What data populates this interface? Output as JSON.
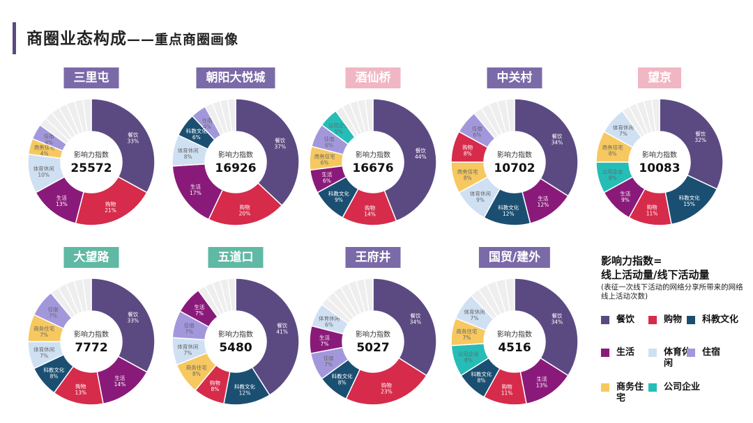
{
  "title": {
    "main": "商圈业态构成",
    "sub": "——重点商圈画像"
  },
  "colors": {
    "dining": "#5b4a82",
    "shopping": "#d62b4a",
    "scitech": "#1b4f72",
    "living": "#8a1a7a",
    "sports": "#cfe0f3",
    "hotel": "#a397dc",
    "business": "#f6c85f",
    "company": "#26bdb6",
    "other": "#eeeeee",
    "badge_purple": "#7b6aa8",
    "badge_pink": "#f0b6c4",
    "badge_teal": "#5fb9a4"
  },
  "center_label": "影响力指数",
  "formula": {
    "line1": "影响力指数=",
    "line2": "线上活动量/线下活动量",
    "line3": "(表征一次线下活动的网络分享所带来的网络线上活动次数)"
  },
  "legend": [
    {
      "key": "dining",
      "label": "餐饮"
    },
    {
      "key": "shopping",
      "label": "购物"
    },
    {
      "key": "scitech",
      "label": "科教文化"
    },
    {
      "key": "living",
      "label": "生活"
    },
    {
      "key": "sports",
      "label": "体育休闲"
    },
    {
      "key": "hotel",
      "label": "住宿"
    },
    {
      "key": "business",
      "label": "商务住宅"
    },
    {
      "key": "company",
      "label": "公司企业"
    }
  ],
  "chart_data": [
    {
      "type": "pie",
      "title": "三里屯",
      "badge": "purple",
      "index": "25572",
      "slices": [
        {
          "key": "dining",
          "name": "餐饮",
          "pct": 33,
          "label": "33%"
        },
        {
          "key": "shopping",
          "name": "购物",
          "pct": 21,
          "label": "21%"
        },
        {
          "key": "living",
          "name": "生活",
          "pct": 13,
          "label": "13%"
        },
        {
          "key": "sports",
          "name": "体育休闲",
          "pct": 10,
          "label": "10%"
        },
        {
          "key": "business",
          "name": "商务住宅",
          "pct": 4,
          "label": "4%"
        },
        {
          "key": "hotel",
          "name": "住宿",
          "pct": 4,
          "label": "4%"
        },
        {
          "key": "other",
          "name": "",
          "pct": 15,
          "label": ""
        }
      ]
    },
    {
      "type": "pie",
      "title": "朝阳大悦城",
      "badge": "purple",
      "index": "16926",
      "slices": [
        {
          "key": "dining",
          "name": "餐饮",
          "pct": 37,
          "label": "37%"
        },
        {
          "key": "shopping",
          "name": "购物",
          "pct": 20,
          "label": "20%"
        },
        {
          "key": "living",
          "name": "生活",
          "pct": 17,
          "label": "17%"
        },
        {
          "key": "sports",
          "name": "体育休闲",
          "pct": 8,
          "label": "8%"
        },
        {
          "key": "scitech",
          "name": "科教文化",
          "pct": 6,
          "label": "6%"
        },
        {
          "key": "hotel",
          "name": "住宿",
          "pct": 4,
          "label": "4%"
        },
        {
          "key": "other",
          "name": "",
          "pct": 8,
          "label": ""
        }
      ]
    },
    {
      "type": "pie",
      "title": "酒仙桥",
      "badge": "pink",
      "index": "16676",
      "slices": [
        {
          "key": "dining",
          "name": "餐饮",
          "pct": 44,
          "label": "44%"
        },
        {
          "key": "shopping",
          "name": "购物",
          "pct": 14,
          "label": "14%"
        },
        {
          "key": "scitech",
          "name": "科教文化",
          "pct": 9,
          "label": "9%"
        },
        {
          "key": "living",
          "name": "生活",
          "pct": 6,
          "label": "6%"
        },
        {
          "key": "business",
          "name": "商务住宅",
          "pct": 6,
          "label": "6%"
        },
        {
          "key": "hotel",
          "name": "住宿",
          "pct": 6,
          "label": "6%"
        },
        {
          "key": "company",
          "name": "公司企业",
          "pct": 5,
          "label": "5%"
        },
        {
          "key": "other",
          "name": "",
          "pct": 10,
          "label": ""
        }
      ]
    },
    {
      "type": "pie",
      "title": "中关村",
      "badge": "purple",
      "index": "10702",
      "slices": [
        {
          "key": "dining",
          "name": "餐饮",
          "pct": 34,
          "label": "34%"
        },
        {
          "key": "living",
          "name": "生活",
          "pct": 12,
          "label": "12%"
        },
        {
          "key": "scitech",
          "name": "科教文化",
          "pct": 12,
          "label": "12%"
        },
        {
          "key": "sports",
          "name": "体育休闲",
          "pct": 9,
          "label": "9%"
        },
        {
          "key": "business",
          "name": "商务住宅",
          "pct": 8,
          "label": "8%"
        },
        {
          "key": "shopping",
          "name": "购物",
          "pct": 8,
          "label": "8%"
        },
        {
          "key": "hotel",
          "name": "住宿",
          "pct": 6,
          "label": "6%"
        },
        {
          "key": "other",
          "name": "",
          "pct": 11,
          "label": ""
        }
      ]
    },
    {
      "type": "pie",
      "title": "望京",
      "badge": "pink",
      "index": "10083",
      "slices": [
        {
          "key": "dining",
          "name": "餐饮",
          "pct": 32,
          "label": "32%"
        },
        {
          "key": "scitech",
          "name": "科教文化",
          "pct": 15,
          "label": "15%"
        },
        {
          "key": "shopping",
          "name": "购物",
          "pct": 11,
          "label": "11%"
        },
        {
          "key": "living",
          "name": "生活",
          "pct": 9,
          "label": "9%"
        },
        {
          "key": "company",
          "name": "公司企业",
          "pct": 8,
          "label": "8%"
        },
        {
          "key": "business",
          "name": "商务住宅",
          "pct": 8,
          "label": "8%"
        },
        {
          "key": "sports",
          "name": "体育休闲",
          "pct": 7,
          "label": "7%"
        },
        {
          "key": "other",
          "name": "",
          "pct": 10,
          "label": ""
        }
      ]
    },
    {
      "type": "pie",
      "title": "大望路",
      "badge": "teal",
      "index": "7772",
      "slices": [
        {
          "key": "dining",
          "name": "餐饮",
          "pct": 33,
          "label": "33%"
        },
        {
          "key": "living",
          "name": "生活",
          "pct": 14,
          "label": "14%"
        },
        {
          "key": "shopping",
          "name": "购物",
          "pct": 13,
          "label": "13%"
        },
        {
          "key": "scitech",
          "name": "科教文化",
          "pct": 8,
          "label": "8%"
        },
        {
          "key": "sports",
          "name": "体育休闲",
          "pct": 7,
          "label": "7%"
        },
        {
          "key": "business",
          "name": "商务住宅",
          "pct": 7,
          "label": "7%"
        },
        {
          "key": "hotel",
          "name": "住宿",
          "pct": 7,
          "label": "7%"
        },
        {
          "key": "other",
          "name": "",
          "pct": 11,
          "label": ""
        }
      ]
    },
    {
      "type": "pie",
      "title": "五道口",
      "badge": "teal",
      "index": "5480",
      "slices": [
        {
          "key": "dining",
          "name": "餐饮",
          "pct": 41,
          "label": "41%"
        },
        {
          "key": "scitech",
          "name": "科教文化",
          "pct": 12,
          "label": "12%"
        },
        {
          "key": "shopping",
          "name": "购物",
          "pct": 8,
          "label": "8%"
        },
        {
          "key": "business",
          "name": "商务住宅",
          "pct": 8,
          "label": "8%"
        },
        {
          "key": "sports",
          "name": "体育休闲",
          "pct": 7,
          "label": "7%"
        },
        {
          "key": "hotel",
          "name": "住宿",
          "pct": 7,
          "label": "7%"
        },
        {
          "key": "living",
          "name": "生活",
          "pct": 7,
          "label": "7%"
        },
        {
          "key": "other",
          "name": "",
          "pct": 10,
          "label": ""
        }
      ]
    },
    {
      "type": "pie",
      "title": "王府井",
      "badge": "purple",
      "index": "5027",
      "slices": [
        {
          "key": "dining",
          "name": "餐饮",
          "pct": 34,
          "label": "34%"
        },
        {
          "key": "shopping",
          "name": "购物",
          "pct": 23,
          "label": "23%"
        },
        {
          "key": "scitech",
          "name": "科教文化",
          "pct": 8,
          "label": "8%"
        },
        {
          "key": "hotel",
          "name": "住宿",
          "pct": 7,
          "label": "7%"
        },
        {
          "key": "living",
          "name": "生活",
          "pct": 7,
          "label": "7%"
        },
        {
          "key": "sports",
          "name": "体育休闲",
          "pct": 6,
          "label": "6%"
        },
        {
          "key": "other",
          "name": "",
          "pct": 15,
          "label": ""
        }
      ]
    },
    {
      "type": "pie",
      "title": "国贸/建外",
      "badge": "purple",
      "index": "4516",
      "slices": [
        {
          "key": "dining",
          "name": "餐饮",
          "pct": 34,
          "label": "34%"
        },
        {
          "key": "living",
          "name": "生活",
          "pct": 13,
          "label": "13%"
        },
        {
          "key": "shopping",
          "name": "购物",
          "pct": 11,
          "label": "11%"
        },
        {
          "key": "scitech",
          "name": "科教文化",
          "pct": 8,
          "label": "8%"
        },
        {
          "key": "company",
          "name": "公司企业",
          "pct": 8,
          "label": "8%"
        },
        {
          "key": "business",
          "name": "商务住宅",
          "pct": 7,
          "label": "7%"
        },
        {
          "key": "sports",
          "name": "体育休闲",
          "pct": 7,
          "label": "7%"
        },
        {
          "key": "other",
          "name": "",
          "pct": 12,
          "label": ""
        }
      ]
    }
  ]
}
